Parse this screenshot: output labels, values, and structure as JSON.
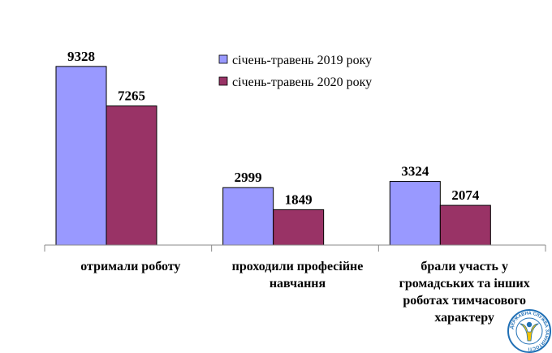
{
  "chart_data": {
    "type": "bar",
    "categories": [
      [
        "отримали роботу"
      ],
      [
        "проходили професійне",
        "навчання"
      ],
      [
        "брали участь у",
        "громадських та інших",
        "роботах тимчасового",
        "характеру"
      ]
    ],
    "series": [
      {
        "name": "січень-травень 2019 року",
        "color": "#9999ff",
        "values": [
          9328,
          2999,
          3324
        ]
      },
      {
        "name": "січень-травень 2020 року",
        "color": "#993366",
        "values": [
          7265,
          1849,
          2074
        ]
      }
    ],
    "legend_position": "top-center",
    "grid": false,
    "ylim": [
      0,
      10000
    ]
  },
  "logo": {
    "text": "ДЕРЖАВНА СЛУЖБА ЗАЙНЯТОСТІ",
    "colors": {
      "ring": "#1f6fb5",
      "figure": "#f2c200"
    }
  }
}
